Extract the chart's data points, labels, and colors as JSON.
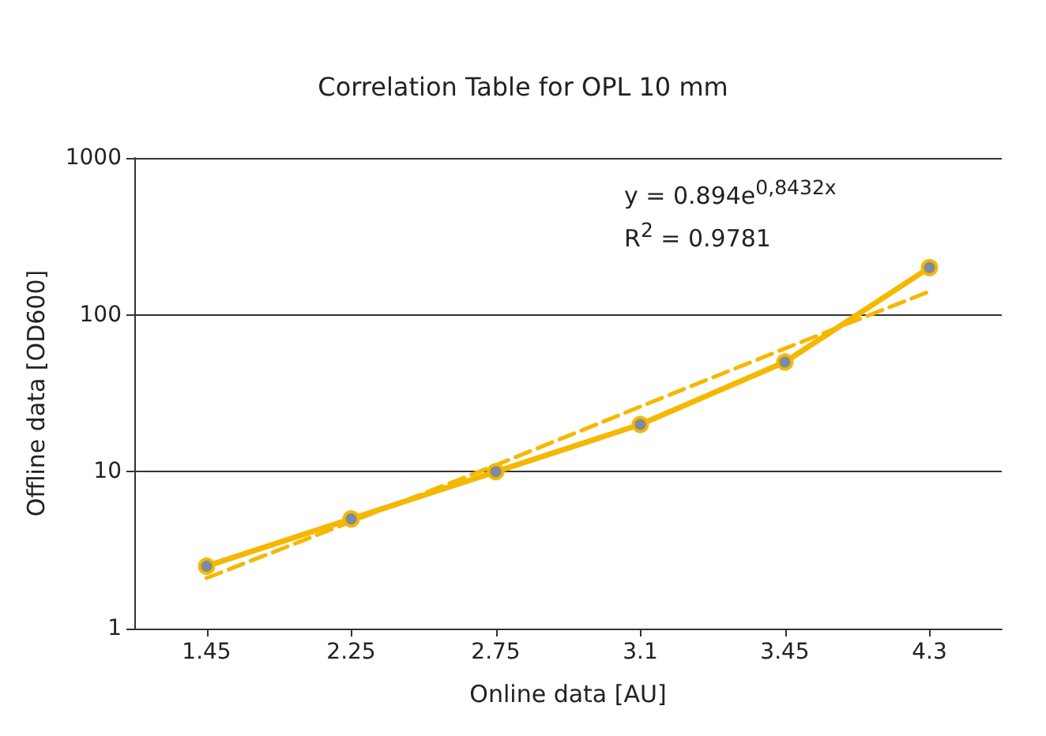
{
  "chart_data": {
    "type": "line",
    "title": "Correlation Table for OPL 10 mm",
    "xlabel": "Online data [AU]",
    "ylabel": "Offline data [OD600]",
    "categories": [
      "1.45",
      "2.25",
      "2.75",
      "3.1",
      "3.45",
      "4.3"
    ],
    "series": [
      {
        "color": "#f5b800",
        "values": [
          2.5,
          5,
          10,
          20,
          50,
          200
        ],
        "marker": "circle",
        "line_style": "solid"
      },
      {
        "color": "#f5b800",
        "values": [
          2.1,
          4.8,
          11,
          26,
          61,
          141
        ],
        "marker": "none",
        "line_style": "dashed"
      }
    ],
    "log": "y",
    "ylim": [
      1,
      1000
    ],
    "yticks": [
      1,
      10,
      100,
      1000
    ],
    "grid": "y",
    "annotations": [
      "y = 0.894e$^{0,8432x}$",
      "R$^{2}$ = 0.9781"
    ]
  }
}
